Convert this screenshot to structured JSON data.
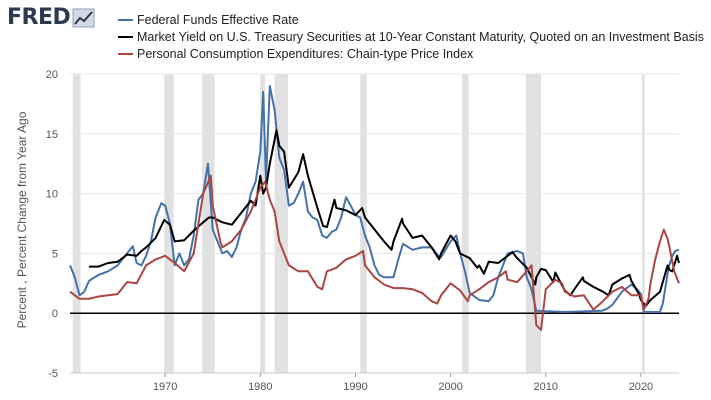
{
  "header": {
    "logo_text": "FRED",
    "logo_icon": "fred-chart-icon"
  },
  "colors": {
    "fed_funds": "#4572a7",
    "treasury_10y": "#000000",
    "pce": "#aa4643",
    "recession": "#e1e1e1",
    "grid": "#e6e6e6"
  },
  "chart_data": {
    "type": "line",
    "ylabel": "Percent , Percent Change from Year Ago",
    "xlabel": "",
    "xlim": [
      1960.0,
      2024.0
    ],
    "ylim": [
      -5,
      20
    ],
    "y_ticks": [
      "-5",
      "0",
      "5",
      "10",
      "15",
      "20"
    ],
    "x_ticks": [
      "1970",
      "1980",
      "1990",
      "2000",
      "2010",
      "2020"
    ],
    "grid": "horizontal",
    "legend_position": "top",
    "recessions": [
      [
        1960.3,
        1961.1
      ],
      [
        1969.9,
        1970.9
      ],
      [
        1973.9,
        1975.2
      ],
      [
        1980.0,
        1980.5
      ],
      [
        1981.5,
        1982.9
      ],
      [
        1990.5,
        1991.2
      ],
      [
        2001.2,
        2001.9
      ],
      [
        2007.9,
        2009.5
      ],
      [
        2020.1,
        2020.4
      ]
    ],
    "series": [
      {
        "name": "Federal Funds Effective Rate",
        "color_key": "fed_funds",
        "x": [
          1960.0,
          1960.5,
          1961.0,
          1961.5,
          1962.0,
          1963.0,
          1964.0,
          1965.0,
          1966.0,
          1966.6,
          1967.0,
          1967.5,
          1968.0,
          1968.5,
          1969.0,
          1969.6,
          1970.0,
          1970.5,
          1971.0,
          1971.5,
          1972.0,
          1972.5,
          1973.0,
          1973.5,
          1974.0,
          1974.5,
          1975.0,
          1975.5,
          1976.0,
          1976.5,
          1977.0,
          1977.5,
          1978.0,
          1978.5,
          1979.0,
          1979.5,
          1980.0,
          1980.3,
          1980.6,
          1981.0,
          1981.5,
          1982.0,
          1982.5,
          1983.0,
          1983.5,
          1984.0,
          1984.5,
          1985.0,
          1985.5,
          1986.0,
          1986.5,
          1987.0,
          1987.5,
          1988.0,
          1988.5,
          1989.0,
          1989.5,
          1990.0,
          1990.5,
          1991.0,
          1991.5,
          1992.0,
          1992.5,
          1993.0,
          1994.0,
          1994.5,
          1995.0,
          1996.0,
          1997.0,
          1998.0,
          1998.7,
          1999.0,
          2000.0,
          2000.6,
          2001.0,
          2001.5,
          2002.0,
          2003.0,
          2004.0,
          2004.5,
          2005.0,
          2006.0,
          2007.0,
          2007.6,
          2008.0,
          2008.5,
          2009.0,
          2012.0,
          2015.9,
          2016.5,
          2017.0,
          2018.0,
          2019.0,
          2019.6,
          2020.0,
          2020.3,
          2021.0,
          2022.0,
          2022.3,
          2022.6,
          2022.9,
          2023.3,
          2023.6,
          2024.0
        ],
        "values": [
          4.0,
          3.0,
          1.5,
          1.8,
          2.7,
          3.2,
          3.5,
          4.0,
          5.0,
          5.6,
          4.2,
          4.0,
          4.8,
          6.0,
          8.0,
          9.2,
          9.0,
          7.5,
          4.0,
          5.0,
          4.0,
          4.5,
          6.5,
          9.5,
          10.0,
          12.5,
          7.0,
          6.0,
          5.0,
          5.2,
          4.7,
          5.5,
          7.0,
          8.0,
          10.0,
          11.0,
          13.5,
          18.5,
          11.0,
          19.0,
          17.0,
          13.0,
          12.0,
          9.0,
          9.2,
          10.0,
          11.0,
          8.5,
          8.0,
          7.8,
          6.5,
          6.3,
          6.8,
          7.0,
          8.0,
          9.7,
          9.0,
          8.2,
          8.0,
          6.5,
          5.5,
          4.0,
          3.2,
          3.0,
          3.0,
          4.5,
          5.8,
          5.3,
          5.5,
          5.5,
          4.8,
          4.7,
          6.0,
          6.5,
          5.0,
          3.5,
          1.7,
          1.1,
          1.0,
          1.5,
          3.0,
          5.0,
          5.2,
          5.0,
          3.0,
          2.0,
          0.2,
          0.1,
          0.2,
          0.4,
          0.7,
          1.8,
          2.4,
          2.0,
          1.6,
          0.1,
          0.1,
          0.1,
          0.8,
          2.3,
          3.8,
          4.8,
          5.2,
          5.3
        ]
      },
      {
        "name": "Market Yield on U.S. Treasury Securities at 10-Year Constant Maturity, Quoted on an Investment Basis",
        "color_key": "treasury_10y",
        "x": [
          1962.0,
          1963.0,
          1964.0,
          1965.0,
          1966.0,
          1967.0,
          1967.5,
          1968.0,
          1969.0,
          1969.9,
          1970.5,
          1971.0,
          1972.0,
          1973.0,
          1974.0,
          1974.6,
          1975.0,
          1976.0,
          1977.0,
          1978.0,
          1979.0,
          1979.5,
          1980.0,
          1980.3,
          1980.6,
          1981.0,
          1981.7,
          1982.0,
          1982.5,
          1983.0,
          1984.0,
          1984.5,
          1985.0,
          1986.0,
          1986.6,
          1987.0,
          1987.8,
          1988.0,
          1989.0,
          1990.0,
          1990.7,
          1991.0,
          1992.0,
          1993.0,
          1993.8,
          1994.0,
          1994.9,
          1995.0,
          1996.0,
          1997.0,
          1998.0,
          1998.8,
          1999.0,
          2000.0,
          2000.5,
          2001.0,
          2002.0,
          2002.8,
          2003.0,
          2003.5,
          2004.0,
          2005.0,
          2006.0,
          2006.5,
          2007.0,
          2008.0,
          2008.9,
          2009.0,
          2009.5,
          2010.0,
          2010.8,
          2011.0,
          2012.0,
          2012.6,
          2013.0,
          2013.9,
          2014.0,
          2015.0,
          2016.0,
          2016.6,
          2017.0,
          2018.0,
          2018.8,
          2019.0,
          2019.8,
          2020.0,
          2020.5,
          2021.0,
          2022.0,
          2022.8,
          2023.0,
          2023.3,
          2023.8,
          2024.0
        ],
        "values": [
          3.9,
          3.9,
          4.2,
          4.3,
          4.9,
          4.8,
          5.2,
          5.5,
          6.3,
          7.8,
          7.4,
          6.0,
          6.1,
          6.9,
          7.6,
          8.0,
          8.0,
          7.6,
          7.4,
          8.4,
          9.4,
          9.0,
          11.5,
          10.0,
          10.5,
          12.5,
          15.3,
          14.0,
          13.5,
          10.5,
          11.8,
          13.3,
          11.5,
          8.8,
          7.3,
          7.2,
          9.5,
          8.8,
          8.6,
          8.2,
          8.8,
          8.0,
          7.0,
          6.0,
          5.3,
          6.0,
          7.9,
          7.5,
          6.3,
          6.5,
          5.5,
          4.5,
          5.0,
          6.5,
          6.0,
          5.0,
          4.6,
          3.8,
          4.0,
          3.3,
          4.3,
          4.2,
          4.8,
          5.1,
          4.6,
          3.8,
          2.4,
          3.0,
          3.7,
          3.6,
          2.6,
          3.4,
          1.9,
          1.5,
          2.0,
          3.0,
          2.7,
          2.2,
          1.8,
          1.5,
          2.4,
          2.9,
          3.2,
          2.7,
          1.6,
          1.1,
          0.6,
          1.1,
          1.8,
          4.0,
          3.6,
          3.5,
          4.8,
          4.2
        ]
      },
      {
        "name": "Personal Consumption Expenditures: Chain-type Price Index",
        "color_key": "pce",
        "x": [
          1960.0,
          1961.0,
          1962.0,
          1963.0,
          1964.0,
          1965.0,
          1966.0,
          1967.0,
          1968.0,
          1969.0,
          1970.0,
          1970.5,
          1971.0,
          1972.0,
          1973.0,
          1974.0,
          1974.8,
          1975.0,
          1975.8,
          1976.0,
          1977.0,
          1978.0,
          1979.0,
          1980.0,
          1980.5,
          1981.0,
          1981.5,
          1982.0,
          1983.0,
          1984.0,
          1985.0,
          1986.0,
          1986.5,
          1987.0,
          1988.0,
          1989.0,
          1990.0,
          1990.8,
          1991.0,
          1992.0,
          1993.0,
          1994.0,
          1995.0,
          1996.0,
          1997.0,
          1998.0,
          1998.6,
          1999.0,
          2000.0,
          2001.0,
          2001.8,
          2002.0,
          2003.0,
          2004.0,
          2005.0,
          2005.8,
          2006.0,
          2007.0,
          2008.0,
          2008.5,
          2009.0,
          2009.5,
          2010.0,
          2011.0,
          2011.7,
          2012.0,
          2013.0,
          2014.0,
          2015.0,
          2016.0,
          2017.0,
          2018.0,
          2019.0,
          2020.0,
          2020.3,
          2020.8,
          2021.0,
          2021.5,
          2022.0,
          2022.4,
          2022.8,
          2023.0,
          2023.5,
          2024.0
        ],
        "values": [
          1.8,
          1.2,
          1.2,
          1.4,
          1.5,
          1.6,
          2.6,
          2.5,
          4.0,
          4.5,
          4.8,
          4.5,
          4.2,
          3.5,
          5.0,
          10.0,
          11.5,
          9.0,
          6.0,
          5.5,
          6.0,
          7.0,
          8.5,
          10.5,
          11.0,
          9.5,
          8.5,
          6.0,
          4.0,
          3.5,
          3.5,
          2.2,
          2.0,
          3.5,
          3.8,
          4.5,
          4.8,
          5.2,
          4.0,
          3.0,
          2.4,
          2.1,
          2.1,
          2.0,
          1.7,
          1.0,
          0.8,
          1.5,
          2.5,
          1.9,
          1.0,
          1.5,
          2.0,
          2.6,
          3.0,
          3.5,
          2.8,
          2.6,
          3.5,
          4.0,
          -1.0,
          -1.4,
          2.0,
          2.8,
          2.5,
          1.8,
          1.4,
          1.5,
          0.3,
          1.0,
          1.8,
          2.2,
          1.5,
          1.5,
          0.3,
          1.2,
          2.5,
          4.5,
          6.0,
          7.0,
          6.2,
          5.5,
          3.5,
          2.5
        ]
      }
    ]
  }
}
